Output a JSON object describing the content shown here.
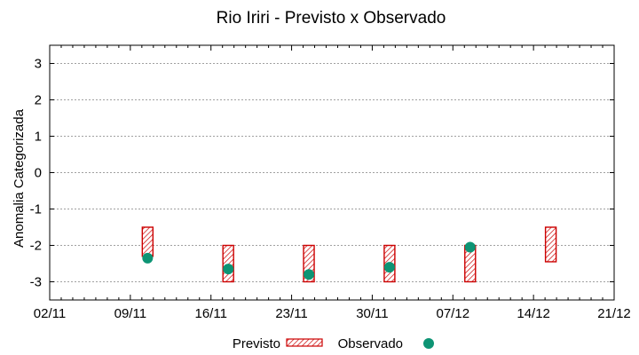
{
  "chart_data": {
    "type": "box-scatter",
    "title": "Rio Iriri - Previsto x Observado",
    "xlabel": "",
    "ylabel": "Anomalia Categorizada",
    "ylim": [
      -3.5,
      3.5
    ],
    "yticks": [
      3,
      2,
      1,
      0,
      -1,
      -2,
      -3
    ],
    "xtick_labels": [
      "02/11",
      "09/11",
      "16/11",
      "23/11",
      "30/11",
      "07/12",
      "14/12",
      "21/12"
    ],
    "grid": true,
    "legend_position": "bottom",
    "series": [
      {
        "name": "Previsto",
        "kind": "range-box",
        "color": "#cc0000",
        "points": [
          {
            "x": 8.5,
            "low": -2.3,
            "high": -1.5
          },
          {
            "x": 15.5,
            "low": -3.0,
            "high": -2.0
          },
          {
            "x": 22.5,
            "low": -3.0,
            "high": -2.0
          },
          {
            "x": 29.5,
            "low": -3.0,
            "high": -2.0
          },
          {
            "x": 36.5,
            "low": -3.0,
            "high": -2.0
          },
          {
            "x": 43.5,
            "low": -2.45,
            "high": -1.5
          }
        ]
      },
      {
        "name": "Observado",
        "kind": "point",
        "color": "#0d9474",
        "points": [
          {
            "x": 8.5,
            "y": -2.35
          },
          {
            "x": 15.5,
            "y": -2.65
          },
          {
            "x": 22.5,
            "y": -2.8
          },
          {
            "x": 29.5,
            "y": -2.6
          },
          {
            "x": 36.5,
            "y": -2.05
          }
        ]
      }
    ]
  }
}
